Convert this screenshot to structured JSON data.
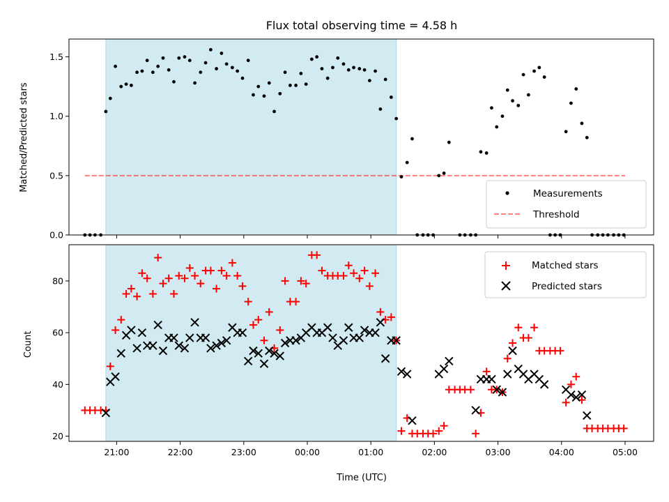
{
  "figure": {
    "title": "Flux total observing time = 4.58 h",
    "xlabel": "Time (UTC)",
    "x_ticks": [
      "21:00",
      "22:00",
      "23:00",
      "00:00",
      "01:00",
      "02:00",
      "03:00",
      "04:00",
      "05:00"
    ]
  },
  "chart_data": [
    {
      "type": "scatter",
      "ylabel": "Matched/Predicted stars",
      "xlim": [
        20.25,
        29.45
      ],
      "ylim": [
        0,
        1.65
      ],
      "y_ticks": [
        "0.0",
        "0.5",
        "1.0",
        "1.5"
      ],
      "y_tick_values": [
        0,
        0.5,
        1.0,
        1.5
      ],
      "x_unit": "hours UTC (values above 24 are after midnight)",
      "shaded_interval": {
        "x": [
          20.83,
          25.4
        ],
        "color": "#add8e6"
      },
      "threshold": {
        "name": "Threshold",
        "y": 0.5,
        "x": [
          20.5,
          29.0
        ],
        "color": "#ff0000",
        "style": "dashed"
      },
      "series": [
        {
          "name": "Measurements",
          "marker": "dot",
          "color": "#000000",
          "x": [
            20.5,
            20.58,
            20.66,
            20.75,
            20.83,
            20.9,
            20.98,
            21.07,
            21.15,
            21.23,
            21.32,
            21.4,
            21.48,
            21.57,
            21.65,
            21.73,
            21.82,
            21.9,
            21.98,
            22.07,
            22.15,
            22.23,
            22.32,
            22.4,
            22.48,
            22.57,
            22.65,
            22.73,
            22.82,
            22.9,
            22.98,
            23.07,
            23.15,
            23.23,
            23.32,
            23.4,
            23.48,
            23.57,
            23.65,
            23.73,
            23.82,
            23.9,
            23.98,
            24.07,
            24.15,
            24.23,
            24.32,
            24.4,
            24.48,
            24.57,
            24.65,
            24.73,
            24.82,
            24.9,
            24.98,
            25.07,
            25.15,
            25.23,
            25.32,
            25.4,
            25.48,
            25.57,
            25.65,
            25.73,
            25.82,
            25.9,
            25.98,
            26.07,
            26.15,
            26.23,
            26.4,
            26.48,
            26.57,
            26.65,
            26.73,
            26.82,
            26.9,
            26.98,
            27.07,
            27.15,
            27.23,
            27.32,
            27.4,
            27.48,
            27.57,
            27.65,
            27.73,
            27.82,
            27.9,
            27.98,
            28.07,
            28.15,
            28.23,
            28.32,
            28.4,
            28.48,
            28.57,
            28.65,
            28.73,
            28.82,
            28.9,
            28.98
          ],
          "y": [
            0,
            0,
            0,
            0,
            1.04,
            1.15,
            1.42,
            1.25,
            1.27,
            1.26,
            1.37,
            1.38,
            1.47,
            1.37,
            1.42,
            1.49,
            1.39,
            1.29,
            1.49,
            1.5,
            1.47,
            1.28,
            1.37,
            1.45,
            1.56,
            1.4,
            1.53,
            1.44,
            1.41,
            1.38,
            1.32,
            1.47,
            1.18,
            1.25,
            1.17,
            1.28,
            1.04,
            1.19,
            1.37,
            1.26,
            1.26,
            1.36,
            1.27,
            1.48,
            1.5,
            1.4,
            1.32,
            1.41,
            1.49,
            1.44,
            1.39,
            1.41,
            1.4,
            1.39,
            1.3,
            1.38,
            1.06,
            1.31,
            1.16,
            0.98,
            0.49,
            0.61,
            0.81,
            0,
            0,
            0,
            0,
            0.5,
            0.52,
            0.78,
            0,
            0,
            0,
            0,
            0.7,
            0.69,
            1.07,
            0.91,
            1.0,
            1.22,
            1.13,
            1.09,
            1.35,
            1.18,
            1.38,
            1.41,
            1.33,
            0,
            0,
            0,
            0.87,
            1.11,
            1.23,
            0.94,
            0.82,
            0,
            0,
            0,
            0,
            0,
            0,
            0
          ]
        }
      ],
      "legend": {
        "position": "lower right",
        "entries": [
          {
            "label": "Measurements",
            "marker": "dot",
            "color": "#000000"
          },
          {
            "label": "Threshold",
            "marker": "dashed-line",
            "color": "#ff0000"
          }
        ]
      }
    },
    {
      "type": "scatter",
      "ylabel": "Count",
      "xlim": [
        20.25,
        29.45
      ],
      "ylim": [
        18,
        94
      ],
      "y_ticks": [
        "20",
        "40",
        "60",
        "80"
      ],
      "y_tick_values": [
        20,
        40,
        60,
        80
      ],
      "shaded_interval": {
        "x": [
          20.83,
          25.4
        ],
        "color": "#add8e6"
      },
      "series": [
        {
          "name": "Matched stars",
          "marker": "plus",
          "color": "#ff0000",
          "x": [
            20.5,
            20.58,
            20.66,
            20.75,
            20.83,
            20.9,
            20.98,
            21.07,
            21.15,
            21.23,
            21.32,
            21.4,
            21.48,
            21.57,
            21.65,
            21.73,
            21.82,
            21.9,
            21.98,
            22.07,
            22.15,
            22.23,
            22.32,
            22.4,
            22.48,
            22.57,
            22.65,
            22.73,
            22.82,
            22.9,
            22.98,
            23.07,
            23.15,
            23.23,
            23.32,
            23.4,
            23.48,
            23.57,
            23.65,
            23.73,
            23.82,
            23.9,
            23.98,
            24.07,
            24.15,
            24.23,
            24.32,
            24.4,
            24.48,
            24.57,
            24.65,
            24.73,
            24.82,
            24.9,
            24.98,
            25.07,
            25.15,
            25.23,
            25.32,
            25.4,
            25.48,
            25.57,
            25.65,
            25.73,
            25.82,
            25.9,
            25.98,
            26.07,
            26.15,
            26.23,
            26.32,
            26.4,
            26.48,
            26.57,
            26.65,
            26.73,
            26.82,
            26.9,
            26.98,
            27.07,
            27.15,
            27.23,
            27.32,
            27.4,
            27.48,
            27.57,
            27.65,
            27.73,
            27.82,
            27.9,
            27.98,
            28.07,
            28.15,
            28.23,
            28.32,
            28.4,
            28.48,
            28.57,
            28.65,
            28.73,
            28.82,
            28.9,
            28.98
          ],
          "y": [
            30,
            30,
            30,
            30,
            30,
            47,
            61,
            65,
            75,
            77,
            74,
            83,
            81,
            75,
            89,
            79,
            81,
            75,
            82,
            81,
            85,
            82,
            79,
            84,
            84,
            77,
            84,
            82,
            87,
            82,
            78,
            72,
            63,
            65,
            57,
            68,
            54,
            61,
            80,
            72,
            72,
            80,
            79,
            90,
            90,
            84,
            82,
            82,
            82,
            82,
            86,
            83,
            81,
            84,
            78,
            83,
            68,
            65,
            66,
            57,
            22,
            27,
            21,
            21,
            21,
            21,
            21,
            22,
            24,
            38,
            38,
            38,
            38,
            38,
            21,
            29,
            45,
            38,
            38,
            37,
            50,
            56,
            62,
            58,
            58,
            62,
            53,
            53,
            53,
            53,
            53,
            33,
            40,
            43,
            34,
            23,
            23,
            23,
            23,
            23,
            23,
            23,
            23
          ]
        },
        {
          "name": "Predicted stars",
          "marker": "x",
          "color": "#000000",
          "x": [
            20.83,
            20.9,
            20.98,
            21.07,
            21.15,
            21.23,
            21.32,
            21.4,
            21.48,
            21.57,
            21.65,
            21.73,
            21.82,
            21.9,
            21.98,
            22.07,
            22.15,
            22.23,
            22.32,
            22.4,
            22.48,
            22.57,
            22.65,
            22.73,
            22.82,
            22.9,
            22.98,
            23.07,
            23.15,
            23.23,
            23.32,
            23.4,
            23.48,
            23.57,
            23.65,
            23.73,
            23.82,
            23.9,
            23.98,
            24.07,
            24.15,
            24.23,
            24.32,
            24.4,
            24.48,
            24.57,
            24.65,
            24.73,
            24.82,
            24.9,
            24.98,
            25.07,
            25.15,
            25.23,
            25.32,
            25.4,
            25.48,
            25.57,
            25.65,
            26.07,
            26.15,
            26.23,
            26.65,
            26.73,
            26.82,
            26.9,
            26.98,
            27.07,
            27.15,
            27.23,
            27.32,
            27.4,
            27.48,
            27.57,
            27.65,
            27.73,
            28.07,
            28.15,
            28.23,
            28.32,
            28.4
          ],
          "y": [
            29,
            41,
            43,
            52,
            59,
            61,
            54,
            60,
            55,
            55,
            63,
            53,
            58,
            58,
            55,
            54,
            58,
            64,
            58,
            58,
            54,
            55,
            56,
            57,
            62,
            60,
            60,
            49,
            53,
            52,
            48,
            53,
            52,
            51,
            56,
            57,
            57,
            58,
            60,
            62,
            60,
            60,
            62,
            58,
            55,
            57,
            62,
            58,
            58,
            61,
            60,
            60,
            64,
            50,
            57,
            57,
            45,
            44,
            26,
            44,
            46,
            49,
            30,
            42,
            42,
            42,
            38,
            37,
            44,
            53,
            46,
            44,
            42,
            44,
            42,
            40,
            38,
            36,
            35,
            36,
            28
          ]
        }
      ],
      "legend": {
        "position": "upper right",
        "entries": [
          {
            "label": "Matched stars",
            "marker": "plus",
            "color": "#ff0000"
          },
          {
            "label": "Predicted stars",
            "marker": "x",
            "color": "#000000"
          }
        ]
      }
    }
  ]
}
